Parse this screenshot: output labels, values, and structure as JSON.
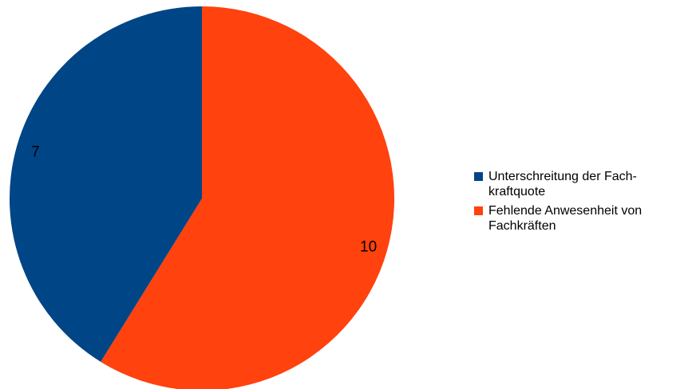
{
  "chart_data": {
    "type": "pie",
    "title": "",
    "slices": [
      {
        "label": "Unterschreitung der Fach-kraftquote",
        "legend_lines": [
          "Unterschreitung der Fach-",
          "kraftquote"
        ],
        "value": 7,
        "color": "#004586"
      },
      {
        "label": "Fehlende Anwesenheit von Fachkräften",
        "legend_lines": [
          "Fehlende Anwesenheit von",
          "Fachkräften"
        ],
        "value": 10,
        "color": "#ff420e"
      }
    ],
    "legend_position": "right"
  }
}
